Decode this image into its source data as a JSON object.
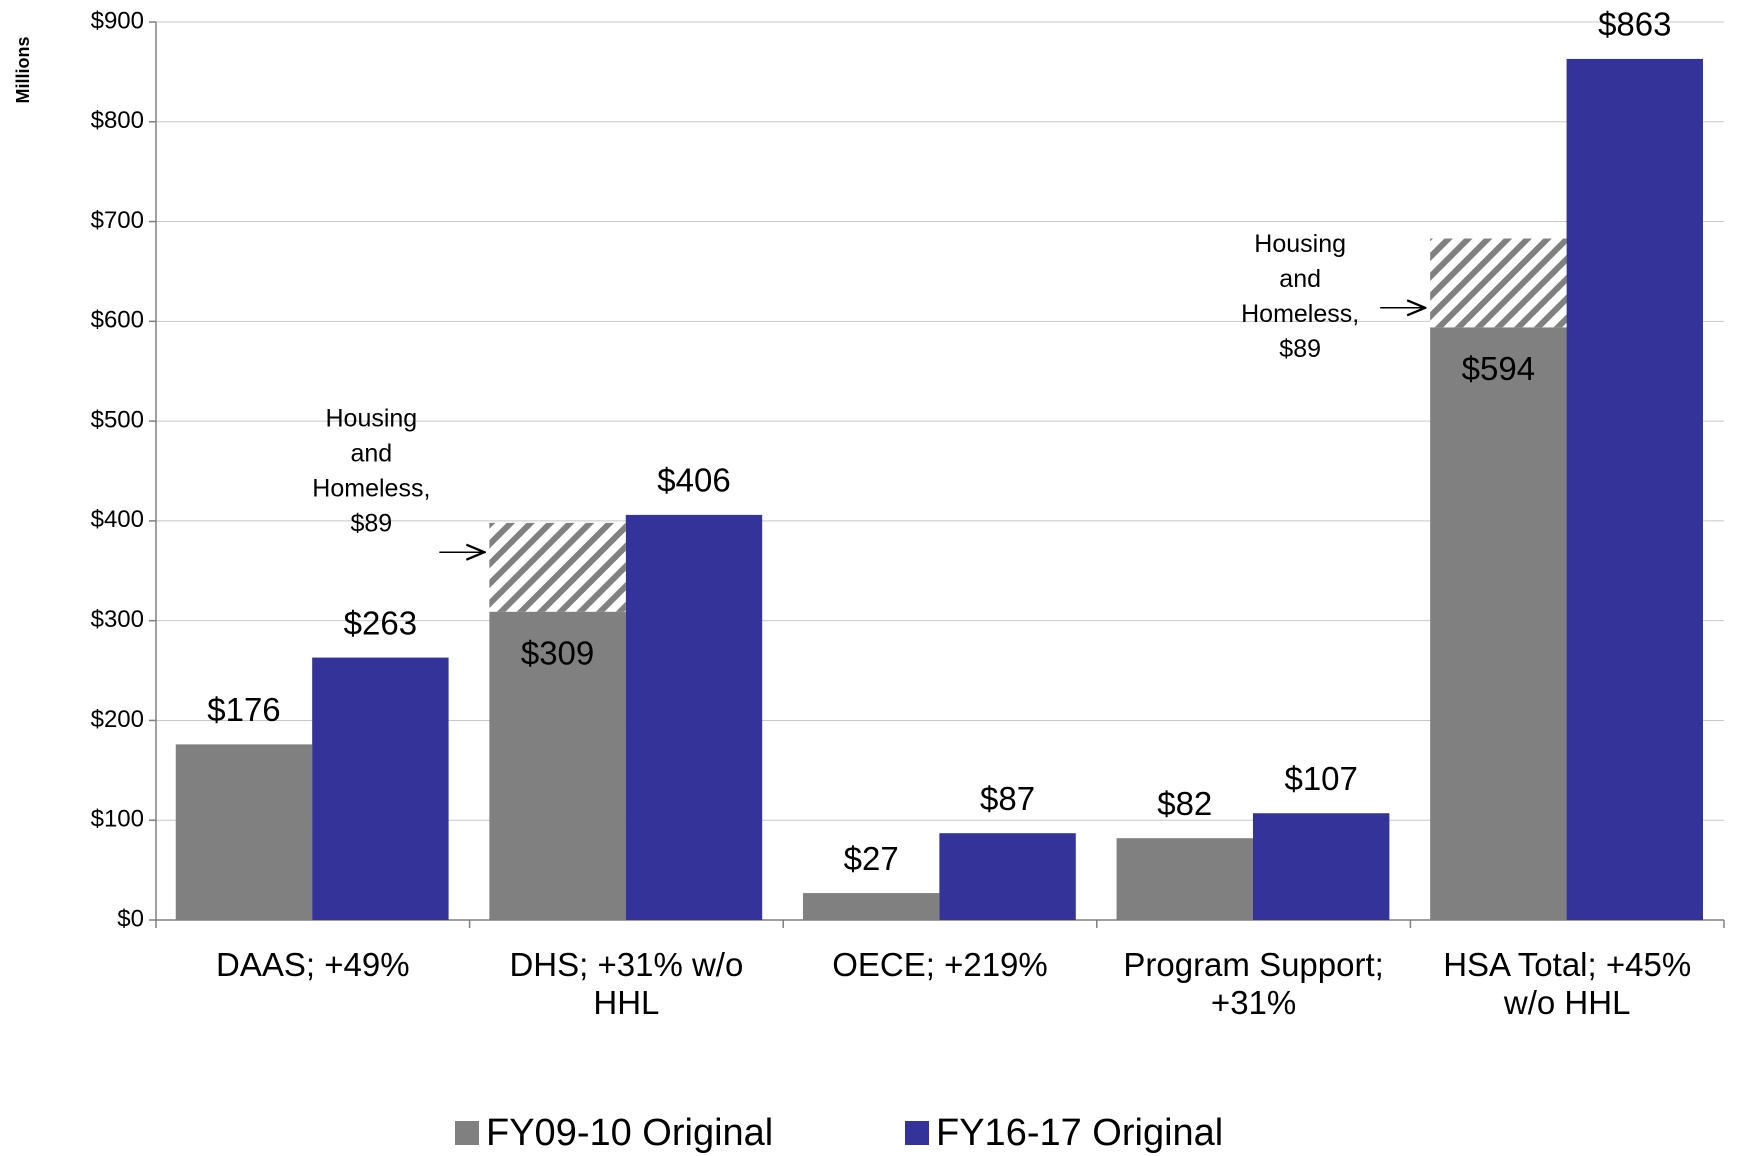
{
  "chart_data": {
    "type": "bar",
    "y_label": "Millions",
    "categories": [
      "DAAS; +49%",
      "DHS; +31% w/o HHL",
      "OECE; +219%",
      "Program Support; +31%",
      "HSA Total; +45% w/o HHL"
    ],
    "series": [
      {
        "name": "FY09-10 Original",
        "color": "#808080",
        "values": [
          176,
          309,
          27,
          82,
          594
        ],
        "value_labels": [
          "$176",
          "$309",
          "$27",
          "$82",
          "$594"
        ]
      },
      {
        "name": "FY16-17 Original",
        "color": "#333399",
        "values": [
          263,
          406,
          87,
          107,
          863
        ],
        "value_labels": [
          "$263",
          "$406",
          "$87",
          "$107",
          "$863"
        ]
      }
    ],
    "overlay": {
      "values": [
        null,
        89,
        null,
        null,
        89
      ],
      "labels": [
        null,
        [
          "Housing",
          "and",
          "Homeless,",
          "$89"
        ],
        null,
        null,
        [
          "Housing",
          "and",
          "Homeless,",
          "$89"
        ]
      ]
    },
    "ylim": [
      0,
      900
    ],
    "yticks": [
      {
        "value": 0,
        "label": "$0"
      },
      {
        "value": 100,
        "label": "$100"
      },
      {
        "value": 200,
        "label": "$200"
      },
      {
        "value": 300,
        "label": "$300"
      },
      {
        "value": 400,
        "label": "$400"
      },
      {
        "value": 500,
        "label": "$500"
      },
      {
        "value": 600,
        "label": "$600"
      },
      {
        "value": 700,
        "label": "$700"
      },
      {
        "value": 800,
        "label": "$800"
      },
      {
        "value": 900,
        "label": "$900"
      }
    ],
    "grid": true,
    "legend": "bottom"
  }
}
